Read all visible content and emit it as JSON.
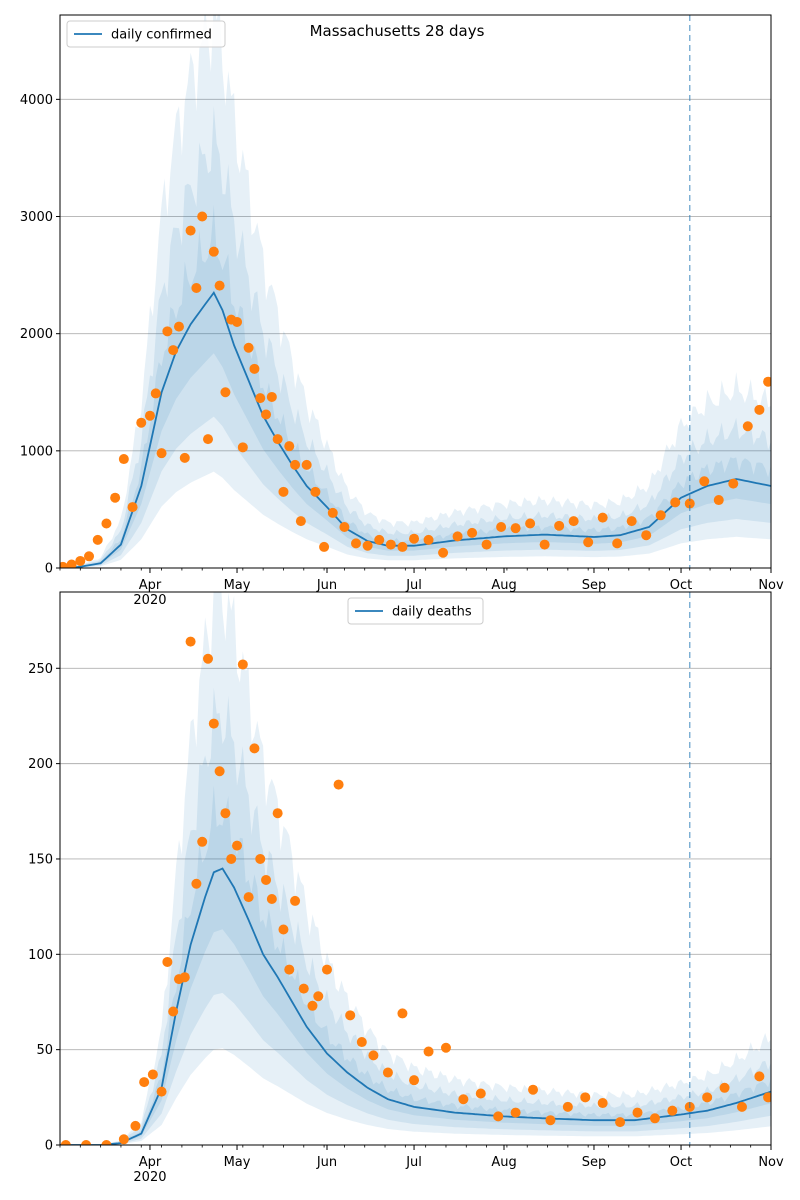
{
  "chart_data": [
    {
      "type": "line",
      "title": "Massachusetts 28 days",
      "xlabel": "",
      "ylabel": "",
      "x_tick_labels": [
        "Apr\n2020",
        "May",
        "Jun",
        "Jul",
        "Aug",
        "Sep",
        "Oct",
        "Nov"
      ],
      "x_tick_dates": [
        "2020-04-01",
        "2020-05-01",
        "2020-06-01",
        "2020-07-01",
        "2020-08-01",
        "2020-09-01",
        "2020-10-01",
        "2020-11-01"
      ],
      "xlim": [
        "2020-03-01",
        "2020-11-01"
      ],
      "ylim": [
        0,
        4720
      ],
      "y_ticks": [
        0,
        1000,
        2000,
        3000,
        4000
      ],
      "grid": "y",
      "legend": "top-left",
      "forecast_marker_date": "2020-10-04",
      "series": [
        {
          "name": "daily confirmed",
          "kind": "model-line",
          "color": "#1f77b4",
          "x": [
            "2020-03-01",
            "2020-03-08",
            "2020-03-15",
            "2020-03-22",
            "2020-03-29",
            "2020-04-05",
            "2020-04-10",
            "2020-04-15",
            "2020-04-20",
            "2020-04-23",
            "2020-04-26",
            "2020-04-30",
            "2020-05-05",
            "2020-05-10",
            "2020-05-15",
            "2020-05-20",
            "2020-05-25",
            "2020-06-01",
            "2020-06-08",
            "2020-06-15",
            "2020-06-22",
            "2020-07-01",
            "2020-07-15",
            "2020-08-01",
            "2020-08-15",
            "2020-09-01",
            "2020-09-10",
            "2020-09-20",
            "2020-10-01",
            "2020-10-10",
            "2020-10-20",
            "2020-11-01"
          ],
          "values": [
            2,
            10,
            40,
            200,
            700,
            1500,
            1850,
            2080,
            2250,
            2350,
            2200,
            1900,
            1600,
            1300,
            1080,
            880,
            700,
            520,
            330,
            230,
            190,
            190,
            235,
            270,
            285,
            265,
            280,
            350,
            600,
            700,
            760,
            700
          ]
        },
        {
          "name": "",
          "kind": "observed-points",
          "color": "#ff7f0e",
          "x": [
            "2020-03-02",
            "2020-03-05",
            "2020-03-08",
            "2020-03-11",
            "2020-03-14",
            "2020-03-17",
            "2020-03-20",
            "2020-03-23",
            "2020-03-26",
            "2020-03-29",
            "2020-04-01",
            "2020-04-03",
            "2020-04-05",
            "2020-04-07",
            "2020-04-09",
            "2020-04-11",
            "2020-04-13",
            "2020-04-15",
            "2020-04-17",
            "2020-04-19",
            "2020-04-21",
            "2020-04-23",
            "2020-04-25",
            "2020-04-27",
            "2020-04-29",
            "2020-05-01",
            "2020-05-03",
            "2020-05-05",
            "2020-05-07",
            "2020-05-09",
            "2020-05-11",
            "2020-05-13",
            "2020-05-15",
            "2020-05-17",
            "2020-05-19",
            "2020-05-21",
            "2020-05-23",
            "2020-05-25",
            "2020-05-28",
            "2020-05-31",
            "2020-06-03",
            "2020-06-07",
            "2020-06-11",
            "2020-06-15",
            "2020-06-19",
            "2020-06-23",
            "2020-06-27",
            "2020-07-01",
            "2020-07-06",
            "2020-07-11",
            "2020-07-16",
            "2020-07-21",
            "2020-07-26",
            "2020-07-31",
            "2020-08-05",
            "2020-08-10",
            "2020-08-15",
            "2020-08-20",
            "2020-08-25",
            "2020-08-30",
            "2020-09-04",
            "2020-09-09",
            "2020-09-14",
            "2020-09-19",
            "2020-09-24",
            "2020-09-29",
            "2020-10-04",
            "2020-10-09",
            "2020-10-14",
            "2020-10-19",
            "2020-10-24",
            "2020-10-28",
            "2020-10-31"
          ],
          "values": [
            10,
            30,
            60,
            100,
            240,
            380,
            600,
            930,
            520,
            1240,
            1300,
            1490,
            980,
            2020,
            1860,
            2060,
            940,
            2880,
            2390,
            3000,
            1100,
            2700,
            2410,
            1500,
            2120,
            2100,
            1030,
            1880,
            1700,
            1450,
            1310,
            1460,
            1100,
            650,
            1040,
            880,
            400,
            880,
            650,
            180,
            470,
            350,
            210,
            190,
            240,
            200,
            180,
            250,
            240,
            130,
            270,
            300,
            200,
            350,
            340,
            380,
            200,
            360,
            400,
            220,
            430,
            210,
            400,
            280,
            450,
            560,
            550,
            740,
            580,
            720,
            1210,
            1350,
            1590
          ]
        }
      ]
    },
    {
      "type": "line",
      "title": "",
      "xlabel": "",
      "ylabel": "",
      "x_tick_labels": [
        "Apr\n2020",
        "May",
        "Jun",
        "Jul",
        "Aug",
        "Sep",
        "Oct",
        "Nov"
      ],
      "x_tick_dates": [
        "2020-04-01",
        "2020-05-01",
        "2020-06-01",
        "2020-07-01",
        "2020-08-01",
        "2020-09-01",
        "2020-10-01",
        "2020-11-01"
      ],
      "xlim": [
        "2020-03-01",
        "2020-11-01"
      ],
      "ylim": [
        0,
        290
      ],
      "y_ticks": [
        0,
        50,
        100,
        150,
        200,
        250
      ],
      "grid": "y",
      "legend": "top-center",
      "forecast_marker_date": "2020-10-04",
      "series": [
        {
          "name": "daily deaths",
          "kind": "model-line",
          "color": "#1f77b4",
          "x": [
            "2020-03-01",
            "2020-03-15",
            "2020-03-22",
            "2020-03-29",
            "2020-04-05",
            "2020-04-10",
            "2020-04-15",
            "2020-04-20",
            "2020-04-23",
            "2020-04-26",
            "2020-04-30",
            "2020-05-05",
            "2020-05-10",
            "2020-05-15",
            "2020-05-20",
            "2020-05-25",
            "2020-06-01",
            "2020-06-08",
            "2020-06-15",
            "2020-06-22",
            "2020-07-01",
            "2020-07-15",
            "2020-08-01",
            "2020-08-15",
            "2020-09-01",
            "2020-09-15",
            "2020-10-01",
            "2020-10-10",
            "2020-10-20",
            "2020-11-01"
          ],
          "values": [
            0,
            0,
            1,
            6,
            30,
            70,
            105,
            130,
            143,
            145,
            135,
            118,
            100,
            88,
            75,
            62,
            48,
            38,
            30,
            24,
            20,
            17,
            15,
            14,
            13,
            13,
            16,
            18,
            22,
            28
          ]
        },
        {
          "name": "",
          "kind": "observed-points",
          "color": "#ff7f0e",
          "x": [
            "2020-03-03",
            "2020-03-10",
            "2020-03-17",
            "2020-03-23",
            "2020-03-27",
            "2020-03-30",
            "2020-04-02",
            "2020-04-05",
            "2020-04-07",
            "2020-04-09",
            "2020-04-11",
            "2020-04-13",
            "2020-04-15",
            "2020-04-17",
            "2020-04-19",
            "2020-04-21",
            "2020-04-23",
            "2020-04-25",
            "2020-04-27",
            "2020-04-29",
            "2020-05-01",
            "2020-05-03",
            "2020-05-05",
            "2020-05-07",
            "2020-05-09",
            "2020-05-11",
            "2020-05-13",
            "2020-05-15",
            "2020-05-17",
            "2020-05-19",
            "2020-05-21",
            "2020-05-24",
            "2020-05-27",
            "2020-05-29",
            "2020-06-01",
            "2020-06-05",
            "2020-06-09",
            "2020-06-13",
            "2020-06-17",
            "2020-06-22",
            "2020-06-27",
            "2020-07-01",
            "2020-07-06",
            "2020-07-12",
            "2020-07-18",
            "2020-07-24",
            "2020-07-30",
            "2020-08-05",
            "2020-08-11",
            "2020-08-17",
            "2020-08-23",
            "2020-08-29",
            "2020-09-04",
            "2020-09-10",
            "2020-09-16",
            "2020-09-22",
            "2020-09-28",
            "2020-10-04",
            "2020-10-10",
            "2020-10-16",
            "2020-10-22",
            "2020-10-28",
            "2020-10-31"
          ],
          "values": [
            0,
            0,
            0,
            3,
            10,
            33,
            37,
            28,
            96,
            70,
            87,
            88,
            264,
            137,
            159,
            255,
            221,
            196,
            174,
            150,
            157,
            252,
            130,
            208,
            150,
            139,
            129,
            174,
            113,
            92,
            128,
            82,
            73,
            78,
            92,
            189,
            68,
            54,
            47,
            38,
            69,
            34,
            49,
            51,
            24,
            27,
            15,
            17,
            29,
            13,
            20,
            25,
            22,
            12,
            17,
            14,
            18,
            20,
            25,
            30,
            20,
            36,
            25
          ]
        }
      ]
    }
  ]
}
